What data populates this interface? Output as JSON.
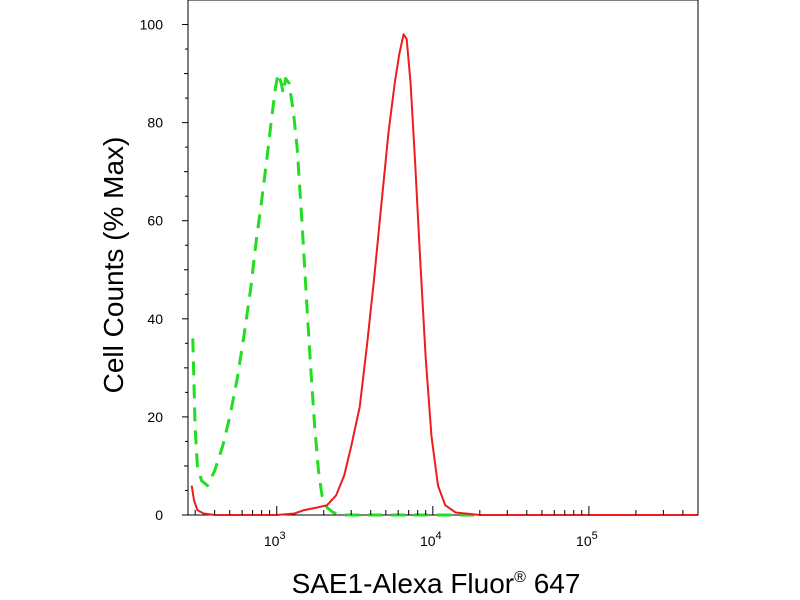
{
  "chart_data": {
    "type": "line",
    "xlabel": "SAE1-Alexa Fluor",
    "xlabel_mark": "®",
    "xlabel_suffix": " 647",
    "ylabel": "Cell Counts (% Max)",
    "xscale": "log",
    "xlim": [
      270,
      500000
    ],
    "ylim": [
      0,
      105
    ],
    "x_ticks": [
      {
        "base": "10",
        "exp": "3",
        "value": 1000
      },
      {
        "base": "10",
        "exp": "4",
        "value": 10000
      },
      {
        "base": "10",
        "exp": "5",
        "value": 100000
      }
    ],
    "y_ticks": [
      {
        "label": "0",
        "value": 0
      },
      {
        "label": "20",
        "value": 20
      },
      {
        "label": "40",
        "value": 40
      },
      {
        "label": "60",
        "value": 60
      },
      {
        "label": "80",
        "value": 80
      },
      {
        "label": "100",
        "value": 100
      }
    ],
    "grid": false,
    "series": [
      {
        "color": "#22dd22",
        "dash": "dashed",
        "points": [
          [
            290,
            36
          ],
          [
            300,
            18
          ],
          [
            310,
            10
          ],
          [
            330,
            7
          ],
          [
            360,
            6
          ],
          [
            400,
            9
          ],
          [
            450,
            14
          ],
          [
            500,
            20
          ],
          [
            560,
            28
          ],
          [
            620,
            37
          ],
          [
            680,
            46
          ],
          [
            740,
            56
          ],
          [
            800,
            64
          ],
          [
            860,
            72
          ],
          [
            920,
            80
          ],
          [
            980,
            87
          ],
          [
            1020,
            90
          ],
          [
            1070,
            88
          ],
          [
            1100,
            86
          ],
          [
            1140,
            89
          ],
          [
            1200,
            88
          ],
          [
            1280,
            82
          ],
          [
            1350,
            75
          ],
          [
            1450,
            60
          ],
          [
            1550,
            44
          ],
          [
            1650,
            30
          ],
          [
            1750,
            18
          ],
          [
            1850,
            9
          ],
          [
            1950,
            4
          ],
          [
            2100,
            1.5
          ],
          [
            2300,
            0.5
          ],
          [
            2600,
            0
          ],
          [
            20000,
            0
          ]
        ]
      },
      {
        "color": "#ee1c1c",
        "dash": "solid",
        "points": [
          [
            285,
            6
          ],
          [
            295,
            3
          ],
          [
            310,
            1
          ],
          [
            340,
            0.3
          ],
          [
            400,
            0
          ],
          [
            1000,
            0
          ],
          [
            1300,
            0.3
          ],
          [
            1500,
            1
          ],
          [
            1800,
            1.5
          ],
          [
            2100,
            2
          ],
          [
            2400,
            4
          ],
          [
            2700,
            8
          ],
          [
            3000,
            14
          ],
          [
            3400,
            22
          ],
          [
            3800,
            35
          ],
          [
            4200,
            48
          ],
          [
            4700,
            64
          ],
          [
            5200,
            78
          ],
          [
            5700,
            88
          ],
          [
            6100,
            94
          ],
          [
            6500,
            98
          ],
          [
            6800,
            97
          ],
          [
            7200,
            88
          ],
          [
            7700,
            72
          ],
          [
            8300,
            52
          ],
          [
            9000,
            32
          ],
          [
            9800,
            16
          ],
          [
            10800,
            6
          ],
          [
            12000,
            2
          ],
          [
            14000,
            0.5
          ],
          [
            20000,
            0
          ],
          [
            500000,
            0
          ]
        ]
      }
    ]
  }
}
